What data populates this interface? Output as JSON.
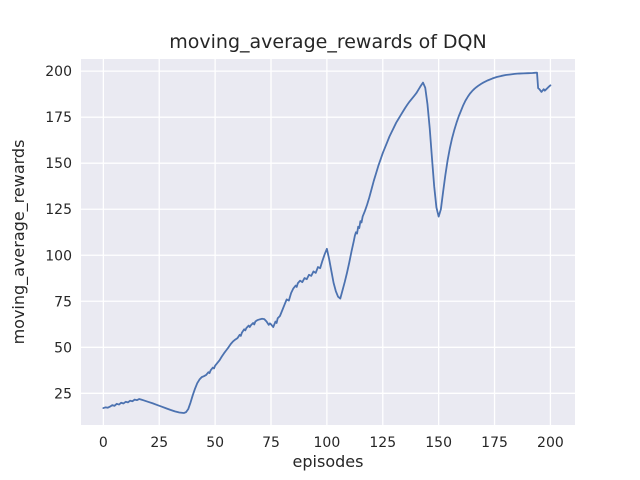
{
  "figure": {
    "background": "#ffffff"
  },
  "chart_data": {
    "type": "line",
    "title": "moving_average_rewards of DQN",
    "xlabel": "episodes",
    "ylabel": "moving_average_rewards",
    "xlim": [
      -10,
      211
    ],
    "ylim": [
      7.8,
      206.6
    ],
    "xticks": [
      0,
      25,
      50,
      75,
      100,
      125,
      150,
      175,
      200
    ],
    "yticks": [
      25,
      50,
      75,
      100,
      125,
      150,
      175,
      200
    ],
    "grid": true,
    "legend_position": "none",
    "axes_background": "#eaeaf2",
    "gridline_color": "#ffffff",
    "text_color": "#262626",
    "series": [
      {
        "name": "moving_average_rewards",
        "color": "#4c72b0",
        "linewidth": 1.8,
        "points": [
          [
            0,
            17
          ],
          [
            1,
            17.4
          ],
          [
            2,
            17.2
          ],
          [
            3,
            17.8
          ],
          [
            4,
            18.6
          ],
          [
            5,
            18.2
          ],
          [
            6,
            19.3
          ],
          [
            7,
            18.9
          ],
          [
            8,
            19.9
          ],
          [
            9,
            19.5
          ],
          [
            10,
            20.4
          ],
          [
            11,
            20.1
          ],
          [
            12,
            21
          ],
          [
            13,
            20.7
          ],
          [
            14,
            21.6
          ],
          [
            15,
            21.3
          ],
          [
            16,
            21.9
          ],
          [
            17,
            21.6
          ],
          [
            18,
            21.2
          ],
          [
            20,
            20.4
          ],
          [
            22,
            19.6
          ],
          [
            24,
            18.7
          ],
          [
            26,
            17.8
          ],
          [
            28,
            16.9
          ],
          [
            30,
            16
          ],
          [
            32,
            15.2
          ],
          [
            34,
            14.6
          ],
          [
            36,
            14.3
          ],
          [
            37,
            14.8
          ],
          [
            38,
            16.5
          ],
          [
            39,
            20
          ],
          [
            40,
            24
          ],
          [
            41,
            27.5
          ],
          [
            42,
            30.5
          ],
          [
            43,
            32.5
          ],
          [
            44,
            33.8
          ],
          [
            45,
            34.3
          ],
          [
            46,
            35
          ],
          [
            47,
            36.5
          ],
          [
            47.5,
            36
          ],
          [
            48,
            37.5
          ],
          [
            49,
            39
          ],
          [
            49.5,
            38.5
          ],
          [
            50,
            40
          ],
          [
            51,
            41.5
          ],
          [
            52,
            43
          ],
          [
            53,
            45
          ],
          [
            54,
            46.8
          ],
          [
            55,
            48.4
          ],
          [
            56,
            50
          ],
          [
            57,
            51.8
          ],
          [
            58,
            53.2
          ],
          [
            59,
            54.2
          ],
          [
            60,
            55
          ],
          [
            61,
            56.8
          ],
          [
            61.5,
            56.2
          ],
          [
            62,
            58
          ],
          [
            63,
            59.8
          ],
          [
            63.5,
            59.2
          ],
          [
            64,
            60.5
          ],
          [
            65,
            61.8
          ],
          [
            65.5,
            61
          ],
          [
            66,
            62
          ],
          [
            67,
            63.2
          ],
          [
            67.5,
            62.4
          ],
          [
            68,
            64
          ],
          [
            69,
            64.8
          ],
          [
            70,
            65.2
          ],
          [
            71,
            65.5
          ],
          [
            72,
            65.3
          ],
          [
            73,
            64
          ],
          [
            74,
            62.2
          ],
          [
            74.5,
            63
          ],
          [
            75,
            62.5
          ],
          [
            76,
            61
          ],
          [
            77,
            64
          ],
          [
            77.5,
            63.2
          ],
          [
            78,
            65.8
          ],
          [
            79,
            67
          ],
          [
            80,
            70
          ],
          [
            81,
            73
          ],
          [
            82,
            76
          ],
          [
            83,
            75.4
          ],
          [
            84,
            79.5
          ],
          [
            85,
            82
          ],
          [
            86,
            83.5
          ],
          [
            86.5,
            82.8
          ],
          [
            87,
            84.8
          ],
          [
            88,
            86.2
          ],
          [
            89,
            85.4
          ],
          [
            90,
            87.6
          ],
          [
            91,
            87
          ],
          [
            92,
            89.4
          ],
          [
            93,
            88.8
          ],
          [
            94,
            91.2
          ],
          [
            95,
            90.4
          ],
          [
            96,
            93.6
          ],
          [
            97,
            93
          ],
          [
            98,
            97
          ],
          [
            99,
            100.5
          ],
          [
            100,
            103.5
          ],
          [
            101,
            98
          ],
          [
            102,
            91.5
          ],
          [
            103,
            85
          ],
          [
            104,
            80.5
          ],
          [
            105,
            77.5
          ],
          [
            106,
            76.5
          ],
          [
            107,
            81
          ],
          [
            108,
            85.5
          ],
          [
            109,
            90.5
          ],
          [
            110,
            96
          ],
          [
            111,
            102
          ],
          [
            112,
            107.5
          ],
          [
            112.5,
            110.5
          ],
          [
            113,
            112.5
          ],
          [
            113.5,
            111.8
          ],
          [
            114,
            115.5
          ],
          [
            114.5,
            114.8
          ],
          [
            115,
            118.5
          ],
          [
            115.5,
            117.8
          ],
          [
            116,
            121
          ],
          [
            117,
            124
          ],
          [
            118,
            127.5
          ],
          [
            119,
            131.5
          ],
          [
            120,
            136
          ],
          [
            121,
            140.5
          ],
          [
            122,
            144.5
          ],
          [
            123,
            148.5
          ],
          [
            124,
            152
          ],
          [
            125,
            155.5
          ],
          [
            126,
            158.5
          ],
          [
            127,
            161.5
          ],
          [
            128,
            164.5
          ],
          [
            129,
            167
          ],
          [
            130,
            169.5
          ],
          [
            131,
            172
          ],
          [
            132,
            174
          ],
          [
            133,
            176
          ],
          [
            134,
            178
          ],
          [
            135,
            180
          ],
          [
            136,
            181.8
          ],
          [
            137,
            183.5
          ],
          [
            138,
            185
          ],
          [
            139,
            186.5
          ],
          [
            140,
            188
          ],
          [
            141,
            190
          ],
          [
            142,
            192
          ],
          [
            143,
            193.8
          ],
          [
            144,
            191
          ],
          [
            145,
            182
          ],
          [
            146,
            169
          ],
          [
            147,
            153
          ],
          [
            148,
            137.5
          ],
          [
            149,
            126
          ],
          [
            150,
            121
          ],
          [
            151,
            125
          ],
          [
            152,
            134.5
          ],
          [
            153,
            143.5
          ],
          [
            154,
            151.5
          ],
          [
            155,
            158
          ],
          [
            156,
            163.5
          ],
          [
            157,
            168
          ],
          [
            158,
            172
          ],
          [
            159,
            175.5
          ],
          [
            160,
            178.5
          ],
          [
            161,
            181.5
          ],
          [
            162,
            184
          ],
          [
            163,
            186
          ],
          [
            164,
            187.8
          ],
          [
            165,
            189.2
          ],
          [
            166,
            190.4
          ],
          [
            167,
            191.4
          ],
          [
            168,
            192.3
          ],
          [
            169,
            193.1
          ],
          [
            170,
            193.8
          ],
          [
            172,
            195
          ],
          [
            174,
            196
          ],
          [
            176,
            196.8
          ],
          [
            178,
            197.4
          ],
          [
            180,
            197.9
          ],
          [
            182,
            198.2
          ],
          [
            184,
            198.5
          ],
          [
            186,
            198.7
          ],
          [
            188,
            198.8
          ],
          [
            190,
            198.9
          ],
          [
            192,
            199
          ],
          [
            193,
            199.1
          ],
          [
            194,
            199.2
          ],
          [
            194.5,
            190.8
          ],
          [
            195,
            190.3
          ],
          [
            196,
            188.7
          ],
          [
            197,
            190.2
          ],
          [
            197.5,
            189.4
          ],
          [
            198,
            190
          ],
          [
            199,
            191.2
          ],
          [
            200,
            192.3
          ]
        ]
      }
    ]
  }
}
